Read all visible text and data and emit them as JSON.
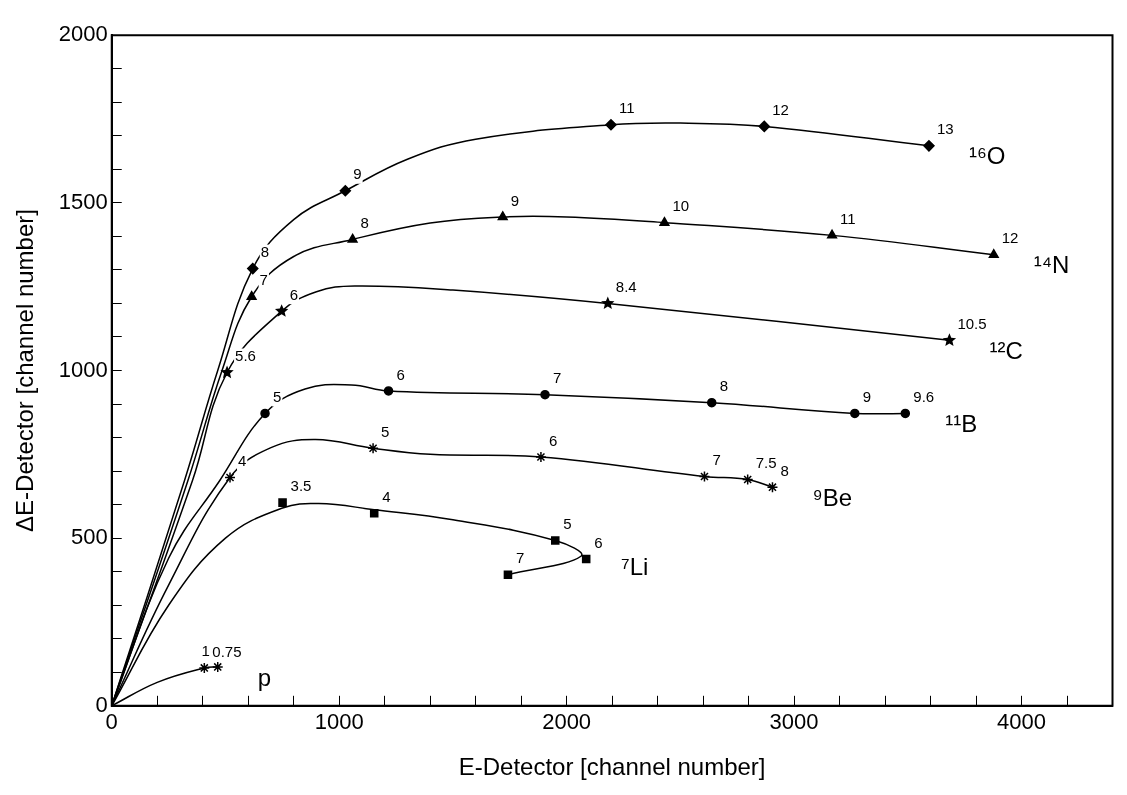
{
  "chart_data": {
    "type": "line",
    "xlabel": "E-Detector [channel number]",
    "ylabel": "ΔE-Detector [channel number]",
    "xlim": [
      0,
      4400
    ],
    "ylim": [
      0,
      2000
    ],
    "xticks": [
      0,
      {
        "value": 200,
        "label": null
      },
      {
        "value": 400,
        "label": null
      },
      {
        "value": 600,
        "label": null
      },
      {
        "value": 800,
        "label": null
      },
      1000,
      {
        "value": 1200,
        "label": null
      },
      {
        "value": 1400,
        "label": null
      },
      {
        "value": 1600,
        "label": null
      },
      {
        "value": 1800,
        "label": null
      },
      2000,
      {
        "value": 2200,
        "label": null
      },
      {
        "value": 2400,
        "label": null
      },
      {
        "value": 2600,
        "label": null
      },
      {
        "value": 2800,
        "label": null
      },
      3000,
      {
        "value": 3200,
        "label": null
      },
      {
        "value": 3400,
        "label": null
      },
      {
        "value": 3600,
        "label": null
      },
      {
        "value": 3800,
        "label": null
      },
      4000,
      {
        "value": 4200,
        "label": null
      }
    ],
    "yticks": [
      0,
      {
        "value": 100,
        "label": null
      },
      {
        "value": 200,
        "label": null
      },
      {
        "value": 300,
        "label": null
      },
      {
        "value": 400,
        "label": null
      },
      500,
      {
        "value": 600,
        "label": null
      },
      {
        "value": 700,
        "label": null
      },
      {
        "value": 800,
        "label": null
      },
      {
        "value": 900,
        "label": null
      },
      1000,
      {
        "value": 1100,
        "label": null
      },
      {
        "value": 1200,
        "label": null
      },
      {
        "value": 1300,
        "label": null
      },
      {
        "value": 1400,
        "label": null
      },
      1500,
      {
        "value": 1600,
        "label": null
      },
      {
        "value": 1700,
        "label": null
      },
      {
        "value": 1800,
        "label": null
      },
      {
        "value": 1900,
        "label": null
      },
      2000
    ],
    "grid": false,
    "legend": false,
    "series": [
      {
        "type": "line",
        "name": "¹⁶O",
        "color": "#000000",
        "marker": "none",
        "x": [
          0,
          320,
          466,
          620,
          800,
          1027,
          1300,
          1600,
          2195,
          2500,
          2869,
          3593
        ],
        "values": [
          0,
          672,
          1000,
          1304,
          1450,
          1536,
          1630,
          1690,
          1733,
          1738,
          1728,
          1670
        ]
      },
      {
        "type": "scatter",
        "color": "#000000",
        "marker": "diamond",
        "x": [
          620,
          1027,
          2195,
          2869,
          3593
        ],
        "values": [
          1304,
          1536,
          1733,
          1728,
          1670
        ]
      },
      {
        "type": "line",
        "name": "¹⁴N",
        "color": "#000000",
        "marker": "none",
        "x": [
          0,
          335,
          485,
          615,
          800,
          1059,
          1400,
          1719,
          2000,
          2430,
          3167,
          3878
        ],
        "values": [
          0,
          672,
          1000,
          1220,
          1340,
          1391,
          1440,
          1458,
          1458,
          1441,
          1403,
          1345
        ]
      },
      {
        "type": "scatter",
        "color": "#000000",
        "marker": "triangle",
        "x": [
          615,
          1059,
          1719,
          2430,
          3167,
          3878
        ],
        "values": [
          1220,
          1391,
          1458,
          1441,
          1403,
          1345
        ]
      },
      {
        "type": "line",
        "name": "¹²C",
        "color": "#000000",
        "marker": "none",
        "x": [
          0,
          355,
          507,
          747,
          900,
          1068,
          1500,
          2181,
          3683
        ],
        "values": [
          0,
          672,
          994,
          1177,
          1235,
          1252,
          1240,
          1200,
          1090
        ]
      },
      {
        "type": "scatter",
        "color": "#000000",
        "marker": "star",
        "x": [
          507,
          747,
          2181,
          3683
        ],
        "values": [
          994,
          1177,
          1200,
          1090
        ]
      },
      {
        "type": "line",
        "name": "¹¹B",
        "color": "#000000",
        "marker": "none",
        "x": [
          0,
          250,
          475,
          674,
          850,
          1054,
          1217,
          1905,
          2638,
          3267,
          3489
        ],
        "values": [
          0,
          440,
          672,
          872,
          945,
          957,
          939,
          928,
          904,
          872,
          872
        ]
      },
      {
        "type": "scatter",
        "color": "#000000",
        "marker": "circle",
        "x": [
          674,
          1217,
          1905,
          2638,
          3267,
          3489
        ],
        "values": [
          872,
          939,
          928,
          904,
          872,
          872
        ]
      },
      {
        "type": "line",
        "name": "⁹Be",
        "color": "#000000",
        "marker": "none",
        "x": [
          0,
          250,
          520,
          700,
          896,
          1149,
          1400,
          1887,
          2606,
          2796,
          2905
        ],
        "values": [
          0,
          360,
          681,
          770,
          794,
          768,
          750,
          742,
          684,
          675,
          652
        ]
      },
      {
        "type": "scatter",
        "color": "#000000",
        "marker": "cross",
        "x": [
          520,
          1149,
          1887,
          2606,
          2796,
          2905
        ],
        "values": [
          681,
          768,
          742,
          684,
          675,
          652
        ]
      },
      {
        "type": "line",
        "name": "⁷Li",
        "color": "#000000",
        "marker": "none",
        "x": [
          0,
          250,
          500,
          751,
          910,
          1154,
          1500,
          1950,
          2063,
          1742
        ],
        "values": [
          0,
          300,
          500,
          590,
          603,
          585,
          555,
          493,
          446,
          391
        ]
      },
      {
        "type": "scatter",
        "color": "#000000",
        "marker": "square",
        "x": [
          751,
          1154,
          1950,
          2086,
          1742
        ],
        "values": [
          606,
          574,
          493,
          438,
          391
        ]
      },
      {
        "type": "line",
        "name": "p",
        "color": "#000000",
        "marker": "none",
        "x": [
          0,
          200,
          407,
          466
        ],
        "values": [
          0,
          70,
          113,
          116
        ]
      },
      {
        "type": "scatter",
        "color": "#000000",
        "marker": "cross",
        "x": [
          407,
          466
        ],
        "values": [
          113,
          116
        ]
      }
    ],
    "annotations": [
      {
        "text": "8",
        "x": 620,
        "y": 1304
      },
      {
        "text": "9",
        "x": 1027,
        "y": 1536
      },
      {
        "text": "11",
        "x": 2195,
        "y": 1733
      },
      {
        "text": "12",
        "x": 2869,
        "y": 1728
      },
      {
        "text": "13",
        "x": 3593,
        "y": 1670
      },
      {
        "text": "7",
        "x": 615,
        "y": 1220
      },
      {
        "text": "8",
        "x": 1059,
        "y": 1391
      },
      {
        "text": "9",
        "x": 1719,
        "y": 1458
      },
      {
        "text": "10",
        "x": 2430,
        "y": 1441
      },
      {
        "text": "11",
        "x": 3167,
        "y": 1403
      },
      {
        "text": "12",
        "x": 3878,
        "y": 1345
      },
      {
        "text": "5.6",
        "x": 507,
        "y": 994
      },
      {
        "text": "6",
        "x": 747,
        "y": 1177
      },
      {
        "text": "8.4",
        "x": 2181,
        "y": 1200
      },
      {
        "text": "10.5",
        "x": 3683,
        "y": 1090
      },
      {
        "text": "5",
        "x": 674,
        "y": 872
      },
      {
        "text": "6",
        "x": 1217,
        "y": 939
      },
      {
        "text": "7",
        "x": 1905,
        "y": 928
      },
      {
        "text": "8",
        "x": 2638,
        "y": 904
      },
      {
        "text": "9",
        "x": 3267,
        "y": 872
      },
      {
        "text": "9.6",
        "x": 3489,
        "y": 872
      },
      {
        "text": "4",
        "x": 520,
        "y": 681
      },
      {
        "text": "5",
        "x": 1149,
        "y": 768
      },
      {
        "text": "6",
        "x": 1887,
        "y": 742
      },
      {
        "text": "7",
        "x": 2606,
        "y": 684
      },
      {
        "text": "7.5",
        "x": 2796,
        "y": 675
      },
      {
        "text": "8",
        "x": 2905,
        "y": 652
      },
      {
        "text": "3.5",
        "x": 751,
        "y": 606
      },
      {
        "text": "4",
        "x": 1154,
        "y": 574
      },
      {
        "text": "5",
        "x": 1950,
        "y": 493
      },
      {
        "text": "6",
        "x": 2086,
        "y": 438
      },
      {
        "text": "7",
        "x": 1742,
        "y": 391
      },
      {
        "text": "0.75",
        "x": 407,
        "y": 113
      },
      {
        "text": "1",
        "x": 466,
        "y": 116
      }
    ]
  }
}
